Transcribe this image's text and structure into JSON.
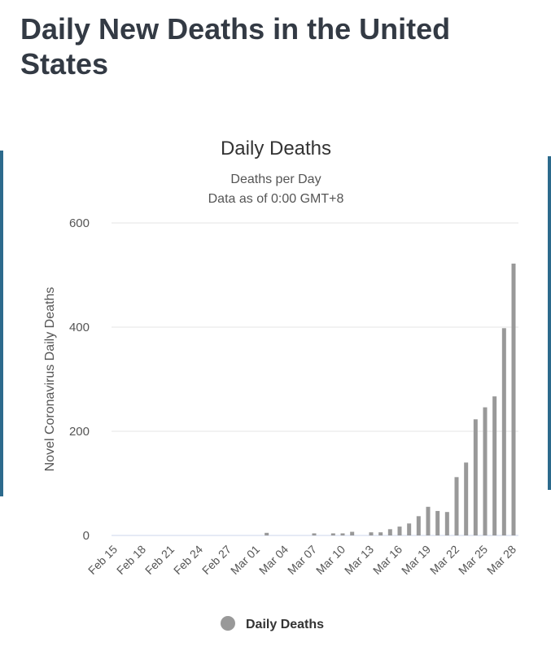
{
  "header": {
    "title": "Daily New Deaths in the United States"
  },
  "chart_data": {
    "type": "bar",
    "title": "Daily Deaths",
    "subtitle": [
      "Deaths per Day",
      "Data as of 0:00 GMT+8"
    ],
    "y_label": "Novel Coronavirus Daily Deaths",
    "categories": [
      "Feb 15",
      null,
      null,
      "Feb 18",
      null,
      null,
      "Feb 21",
      null,
      null,
      "Feb 24",
      null,
      null,
      "Feb 27",
      null,
      null,
      "Mar 01",
      null,
      null,
      "Mar 04",
      null,
      null,
      "Mar 07",
      null,
      null,
      "Mar 10",
      null,
      null,
      "Mar 13",
      null,
      null,
      "Mar 16",
      null,
      null,
      "Mar 19",
      null,
      null,
      "Mar 22",
      null,
      null,
      "Mar 25",
      null,
      null,
      "Mar 28"
    ],
    "series": [
      {
        "name": "Daily Deaths",
        "color": "#999999",
        "values": [
          0,
          0,
          0,
          0,
          0,
          0,
          0,
          0,
          0,
          0,
          0,
          0,
          0,
          0,
          0,
          0,
          5,
          0,
          0,
          0,
          0,
          4,
          0,
          4,
          4,
          7,
          0,
          6,
          6,
          12,
          17,
          23,
          37,
          55,
          47,
          45,
          112,
          140,
          223,
          246,
          267,
          398,
          522
        ]
      }
    ],
    "ylim": [
      0,
      600
    ],
    "yticks": [
      0,
      200,
      400,
      600
    ],
    "grid": true
  }
}
